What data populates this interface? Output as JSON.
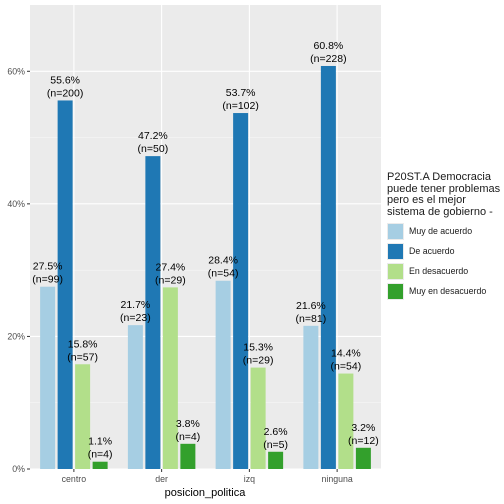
{
  "chart_data": {
    "type": "bar",
    "xlabel": "posicion_politica",
    "ylabel": "",
    "categories": [
      "centro",
      "der",
      "izq",
      "ninguna"
    ],
    "y_ticks": [
      "0%",
      "20%",
      "40%",
      "60%"
    ],
    "ylim": [
      0,
      70
    ],
    "grid": true,
    "legend_position": "right",
    "legend_title": "P20ST.A Democracia puede tener problemas pero es el mejor sistema de gobierno -",
    "series": [
      {
        "name": "Muy de acuerdo",
        "color": "#a6cee3",
        "values": [
          27.5,
          21.7,
          28.4,
          21.6
        ],
        "pct_labels": [
          "27.5%",
          "21.7%",
          "28.4%",
          "21.6%"
        ],
        "n_labels": [
          "(n=99)",
          "(n=23)",
          "(n=54)",
          "(n=81)"
        ]
      },
      {
        "name": "De acuerdo",
        "color": "#1f78b4",
        "values": [
          55.6,
          47.2,
          53.7,
          60.8
        ],
        "pct_labels": [
          "55.6%",
          "47.2%",
          "53.7%",
          "60.8%"
        ],
        "n_labels": [
          "(n=200)",
          "(n=50)",
          "(n=102)",
          "(n=228)"
        ]
      },
      {
        "name": "En desacuerdo",
        "color": "#b2df8a",
        "values": [
          15.8,
          27.4,
          15.3,
          14.4
        ],
        "pct_labels": [
          "15.8%",
          "27.4%",
          "15.3%",
          "14.4%"
        ],
        "n_labels": [
          "(n=57)",
          "(n=29)",
          "(n=29)",
          "(n=54)"
        ]
      },
      {
        "name": "Muy en desacuerdo",
        "color": "#33a02c",
        "values": [
          1.1,
          3.8,
          2.6,
          3.2
        ],
        "pct_labels": [
          "1.1%",
          "3.8%",
          "2.6%",
          "3.2%"
        ],
        "n_labels": [
          "(n=4)",
          "(n=4)",
          "(n=5)",
          "(n=12)"
        ]
      }
    ]
  }
}
